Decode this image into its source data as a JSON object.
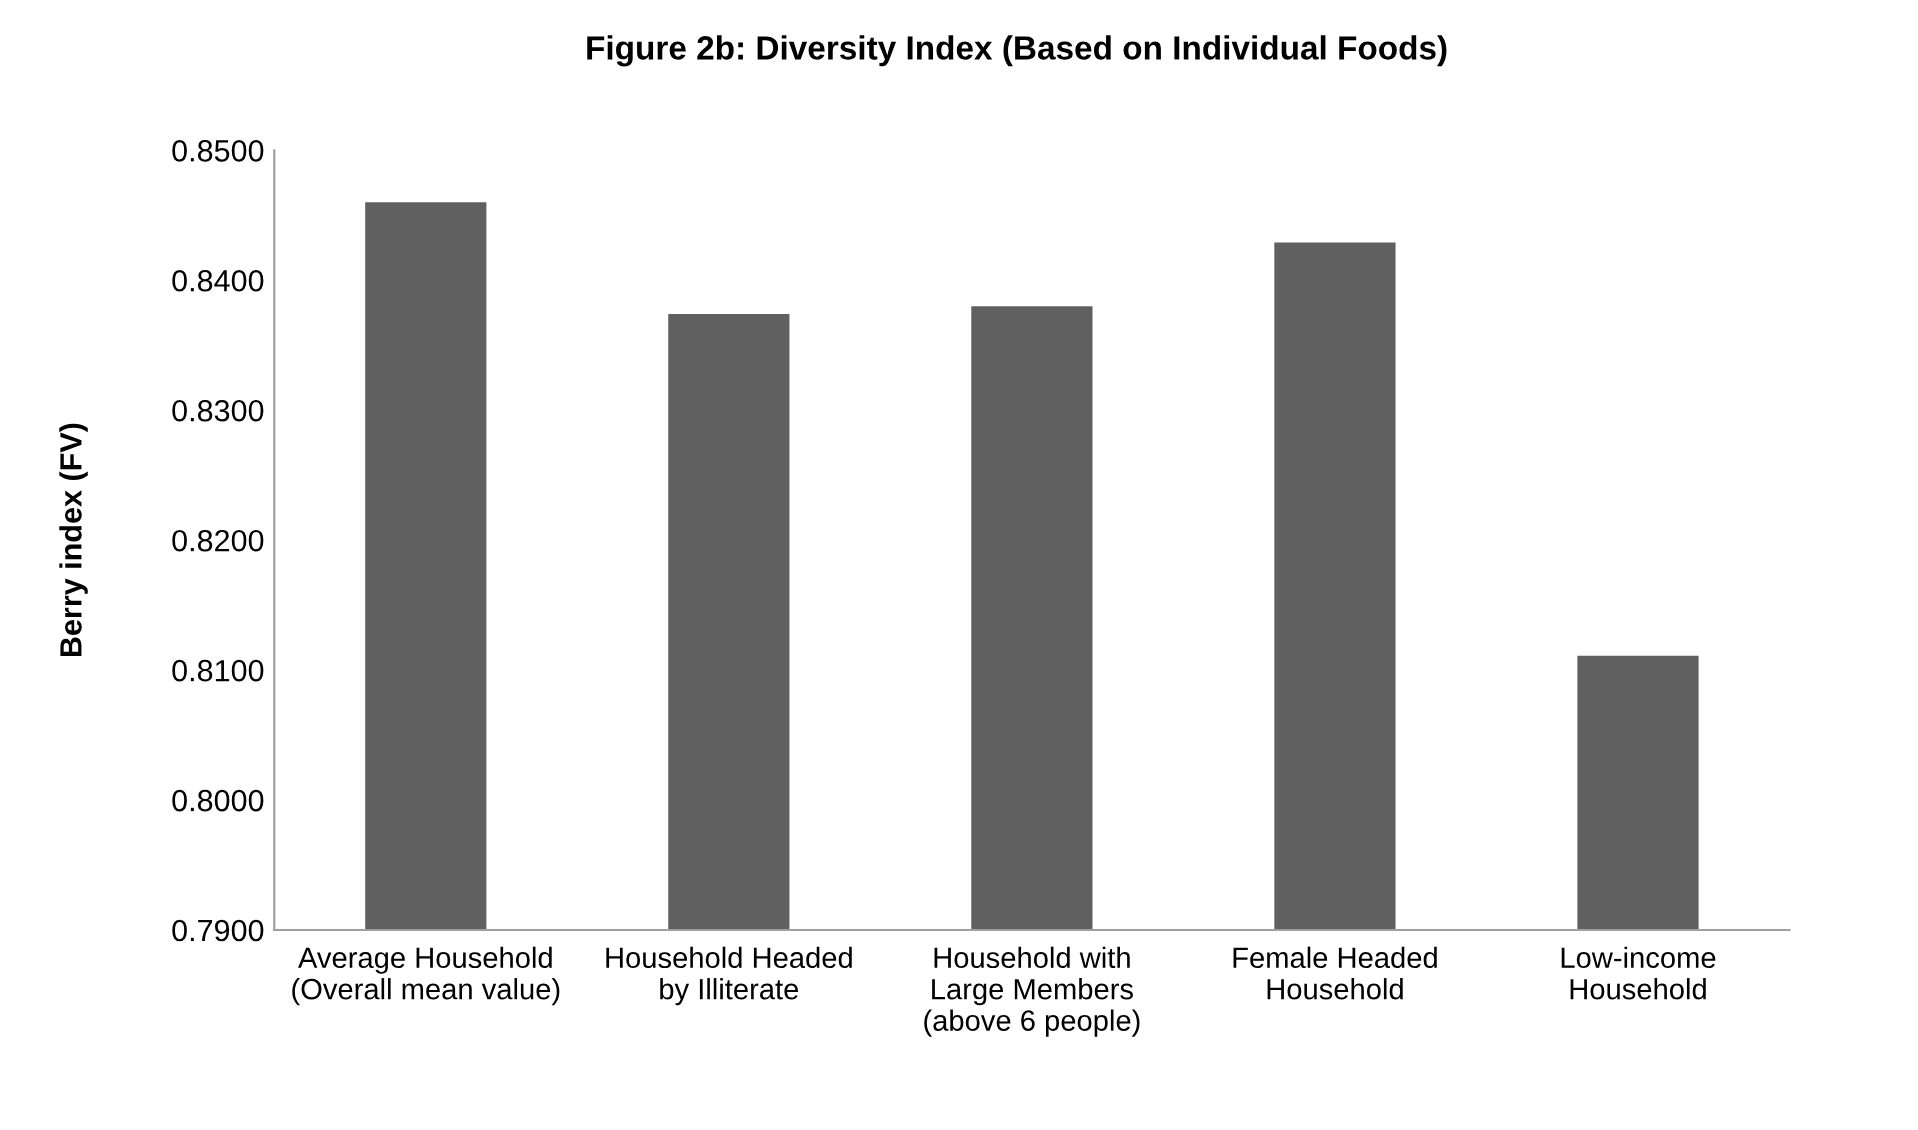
{
  "chart_data": {
    "type": "bar",
    "title": "Figure 2b: Diversity Index (Based on Individual Foods)",
    "ylabel": "Berry index (FV)",
    "categories": [
      "Average Household\n(Overall mean value)",
      "Household Headed\nby Illiterate",
      "Household with\nLarge Members\n(above 6 people)",
      "Female Headed\nHousehold",
      "Low-income\nHousehold"
    ],
    "values": [
      0.846,
      0.8374,
      0.838,
      0.8429,
      0.8111
    ],
    "color": "#606060",
    "ylim": [
      0.79,
      0.85
    ],
    "yticks": [
      {
        "value": 0.79,
        "label": "0.7900"
      },
      {
        "value": 0.8,
        "label": "0.8000"
      },
      {
        "value": 0.81,
        "label": "0.8100"
      },
      {
        "value": 0.82,
        "label": "0.8200"
      },
      {
        "value": 0.83,
        "label": "0.8300"
      },
      {
        "value": 0.84,
        "label": "0.8400"
      },
      {
        "value": 0.85,
        "label": "0.8500"
      }
    ],
    "grid": false,
    "legend": false
  }
}
